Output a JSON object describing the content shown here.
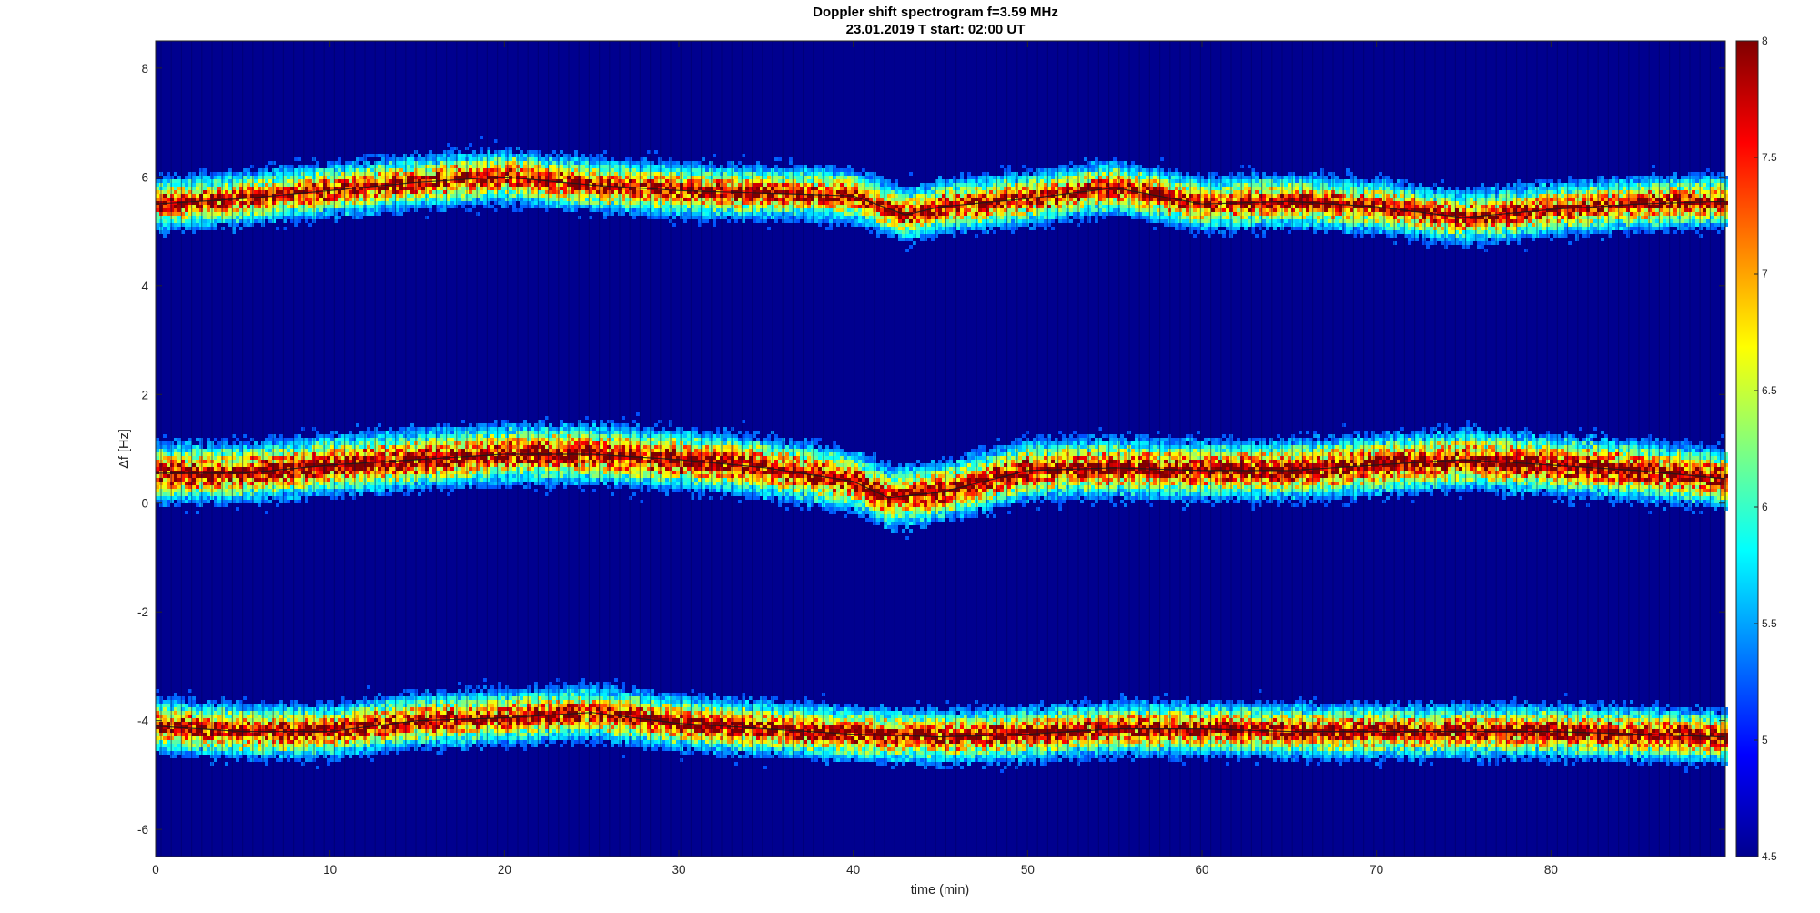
{
  "chart_data": {
    "type": "heatmap",
    "title": "Doppler shift spectrogram f=3.59 MHz",
    "subtitle": "23.01.2019   T start: 02:00 UT",
    "xlabel": "time (min)",
    "ylabel": "Δf [Hz]",
    "xlim": [
      0,
      90
    ],
    "ylim": [
      -6.5,
      8.5
    ],
    "xticks": [
      0,
      10,
      20,
      30,
      40,
      50,
      60,
      70,
      80
    ],
    "yticks": [
      -6,
      -4,
      -2,
      0,
      2,
      4,
      6,
      8
    ],
    "colormap": "jet",
    "clim": [
      4.5,
      8
    ],
    "colorbar_ticks": [
      4.5,
      5,
      5.5,
      6,
      6.5,
      7,
      7.5,
      8
    ],
    "colorbar_location": "right",
    "grid": false,
    "series": [
      {
        "x": [
          0,
          5,
          10,
          15,
          20,
          25,
          30,
          35,
          40,
          43,
          45,
          50,
          55,
          60,
          65,
          70,
          75,
          80,
          85,
          90
        ],
        "y": [
          5.5,
          5.6,
          5.75,
          5.9,
          6.0,
          5.85,
          5.75,
          5.7,
          5.65,
          5.3,
          5.45,
          5.6,
          5.8,
          5.5,
          5.55,
          5.45,
          5.25,
          5.4,
          5.5,
          5.55
        ]
      },
      {
        "x": [
          0,
          5,
          10,
          15,
          20,
          25,
          30,
          35,
          40,
          42,
          45,
          50,
          55,
          60,
          65,
          70,
          75,
          80,
          85,
          90
        ],
        "y": [
          0.55,
          0.55,
          0.7,
          0.8,
          0.9,
          0.9,
          0.8,
          0.65,
          0.4,
          0.1,
          0.2,
          0.6,
          0.65,
          0.6,
          0.6,
          0.7,
          0.8,
          0.7,
          0.6,
          0.45
        ]
      },
      {
        "x": [
          0,
          5,
          10,
          15,
          20,
          25,
          30,
          35,
          40,
          45,
          50,
          55,
          60,
          65,
          70,
          75,
          80,
          85,
          90
        ],
        "y": [
          -4.1,
          -4.2,
          -4.2,
          -4.0,
          -3.95,
          -3.85,
          -4.05,
          -4.15,
          -4.25,
          -4.3,
          -4.25,
          -4.15,
          -4.15,
          -4.2,
          -4.2,
          -4.2,
          -4.2,
          -4.25,
          -4.3
        ]
      }
    ]
  }
}
